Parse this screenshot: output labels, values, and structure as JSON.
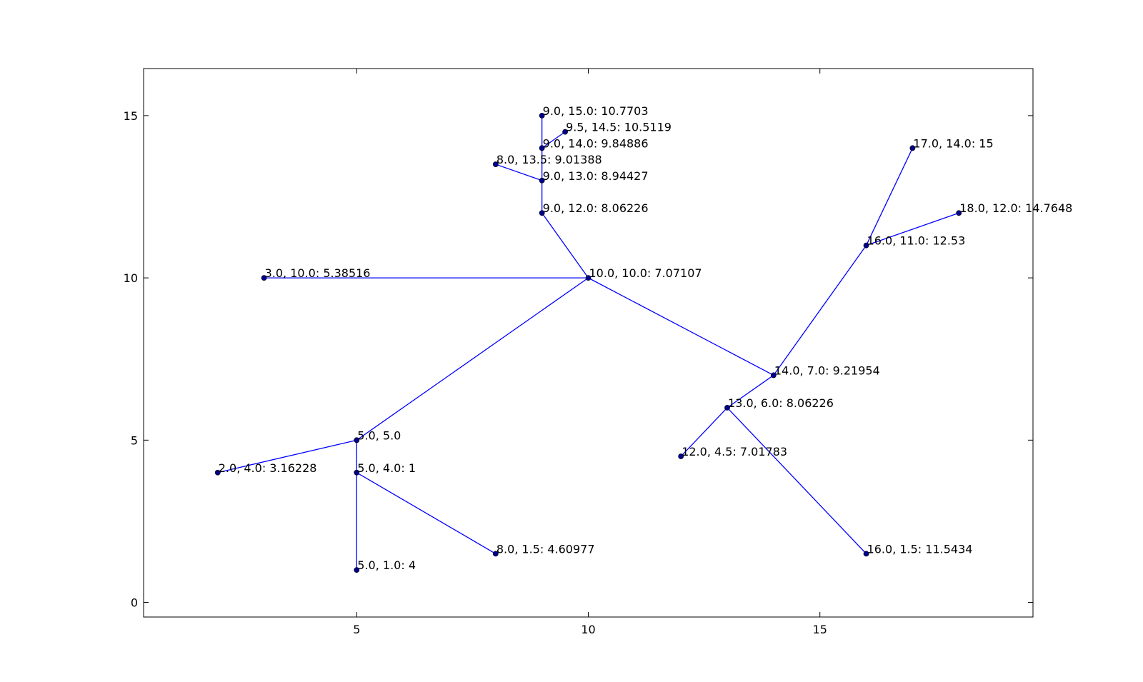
{
  "chart_data": {
    "type": "scatter",
    "title": "",
    "xlabel": "",
    "ylabel": "",
    "xlim": [
      0.4,
      19.6
    ],
    "ylim": [
      -0.45,
      16.45
    ],
    "grid": false,
    "x_ticks": [
      5,
      10,
      15
    ],
    "y_ticks": [
      0,
      5,
      10,
      15
    ],
    "line_color": "#0000ff",
    "marker_color": "#00008b",
    "points": [
      {
        "x": 5.0,
        "y": 5.0,
        "label": "5.0, 5.0"
      },
      {
        "x": 5.0,
        "y": 4.0,
        "label": "5.0, 4.0: 1"
      },
      {
        "x": 5.0,
        "y": 1.0,
        "label": "5.0, 1.0: 4"
      },
      {
        "x": 2.0,
        "y": 4.0,
        "label": "2.0, 4.0: 3.16228"
      },
      {
        "x": 8.0,
        "y": 1.5,
        "label": "8.0, 1.5: 4.60977"
      },
      {
        "x": 10.0,
        "y": 10.0,
        "label": "10.0, 10.0: 7.07107"
      },
      {
        "x": 3.0,
        "y": 10.0,
        "label": "3.0, 10.0: 5.38516"
      },
      {
        "x": 9.0,
        "y": 12.0,
        "label": "9.0, 12.0: 8.06226"
      },
      {
        "x": 9.0,
        "y": 13.0,
        "label": "9.0, 13.0: 8.94427"
      },
      {
        "x": 8.0,
        "y": 13.5,
        "label": "8.0, 13.5: 9.01388"
      },
      {
        "x": 9.0,
        "y": 14.0,
        "label": "9.0, 14.0: 9.84886"
      },
      {
        "x": 9.5,
        "y": 14.5,
        "label": "9.5, 14.5: 10.5119"
      },
      {
        "x": 9.0,
        "y": 15.0,
        "label": "9.0, 15.0: 10.7703"
      },
      {
        "x": 14.0,
        "y": 7.0,
        "label": "14.0, 7.0: 9.21954"
      },
      {
        "x": 13.0,
        "y": 6.0,
        "label": "13.0, 6.0: 8.06226"
      },
      {
        "x": 12.0,
        "y": 4.5,
        "label": "12.0, 4.5: 7.01783"
      },
      {
        "x": 16.0,
        "y": 1.5,
        "label": "16.0, 1.5: 11.5434"
      },
      {
        "x": 16.0,
        "y": 11.0,
        "label": "16.0, 11.0: 12.53"
      },
      {
        "x": 17.0,
        "y": 14.0,
        "label": "17.0, 14.0: 15"
      },
      {
        "x": 18.0,
        "y": 12.0,
        "label": "18.0, 12.0: 14.7648"
      }
    ],
    "edges": [
      [
        0,
        1
      ],
      [
        1,
        2
      ],
      [
        0,
        3
      ],
      [
        1,
        4
      ],
      [
        0,
        5
      ],
      [
        5,
        6
      ],
      [
        5,
        7
      ],
      [
        7,
        8
      ],
      [
        8,
        9
      ],
      [
        8,
        10
      ],
      [
        10,
        11
      ],
      [
        10,
        12
      ],
      [
        5,
        13
      ],
      [
        13,
        14
      ],
      [
        14,
        15
      ],
      [
        14,
        16
      ],
      [
        13,
        17
      ],
      [
        17,
        18
      ],
      [
        17,
        19
      ]
    ]
  }
}
